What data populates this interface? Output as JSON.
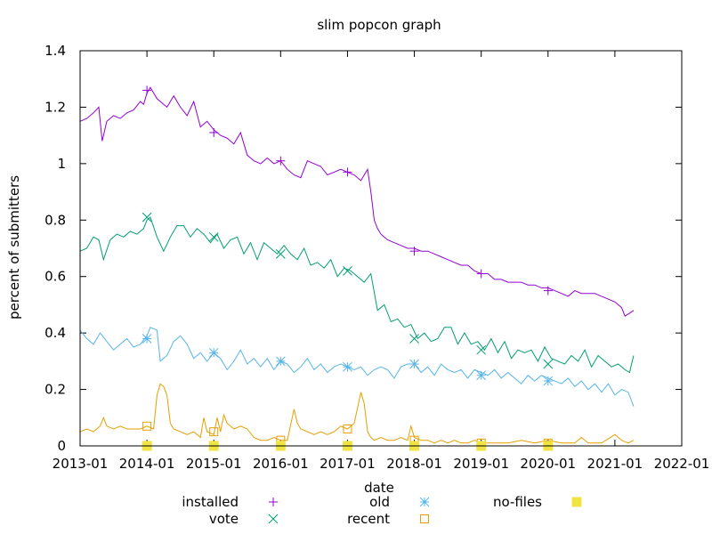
{
  "chart_data": {
    "type": "line",
    "title": "slim popcon graph",
    "xlabel": "date",
    "ylabel": "percent of submitters",
    "ylim": [
      0,
      1.4
    ],
    "xlim": [
      2013.0,
      2022.0
    ],
    "x_ticks": [
      "2013-01",
      "2014-01",
      "2015-01",
      "2016-01",
      "2017-01",
      "2018-01",
      "2019-01",
      "2020-01",
      "2021-01",
      "2022-01"
    ],
    "y_ticks": [
      "0",
      "0.2",
      "0.4",
      "0.6",
      "0.8",
      "1",
      "1.2",
      "1.4"
    ],
    "grid": false,
    "legend_position": "bottom",
    "series": [
      {
        "name": "installed",
        "color": "#9400d3",
        "marker": "plus",
        "x": [
          2013.0,
          2013.1,
          2013.2,
          2013.28,
          2013.33,
          2013.4,
          2013.5,
          2013.6,
          2013.7,
          2013.8,
          2013.9,
          2013.95,
          2014.0,
          2014.05,
          2014.15,
          2014.3,
          2014.4,
          2014.5,
          2014.6,
          2014.7,
          2014.8,
          2014.9,
          2015.0,
          2015.1,
          2015.2,
          2015.3,
          2015.4,
          2015.5,
          2015.6,
          2015.7,
          2015.8,
          2015.9,
          2016.0,
          2016.1,
          2016.2,
          2016.3,
          2016.4,
          2016.5,
          2016.6,
          2016.7,
          2016.8,
          2016.9,
          2017.0,
          2017.1,
          2017.2,
          2017.3,
          2017.35,
          2017.4,
          2017.45,
          2017.5,
          2017.6,
          2017.7,
          2017.8,
          2017.9,
          2018.0,
          2018.1,
          2018.2,
          2018.3,
          2018.4,
          2018.5,
          2018.6,
          2018.7,
          2018.8,
          2018.9,
          2019.0,
          2019.1,
          2019.2,
          2019.3,
          2019.4,
          2019.5,
          2019.6,
          2019.7,
          2019.8,
          2019.9,
          2020.0,
          2020.1,
          2020.2,
          2020.3,
          2020.4,
          2020.5,
          2020.6,
          2020.7,
          2020.8,
          2020.9,
          2021.0,
          2021.1,
          2021.15,
          2021.22,
          2021.28
        ],
        "values": [
          1.15,
          1.16,
          1.18,
          1.2,
          1.08,
          1.15,
          1.17,
          1.16,
          1.18,
          1.19,
          1.22,
          1.21,
          1.25,
          1.27,
          1.23,
          1.2,
          1.24,
          1.2,
          1.17,
          1.22,
          1.13,
          1.15,
          1.12,
          1.1,
          1.09,
          1.07,
          1.11,
          1.03,
          1.01,
          1.0,
          1.02,
          1.0,
          1.01,
          0.98,
          0.96,
          0.95,
          1.01,
          1.0,
          0.99,
          0.96,
          0.97,
          0.98,
          0.97,
          0.96,
          0.94,
          0.98,
          0.9,
          0.8,
          0.77,
          0.75,
          0.73,
          0.72,
          0.71,
          0.7,
          0.7,
          0.69,
          0.69,
          0.68,
          0.67,
          0.66,
          0.65,
          0.64,
          0.64,
          0.62,
          0.61,
          0.61,
          0.59,
          0.59,
          0.58,
          0.58,
          0.58,
          0.57,
          0.57,
          0.56,
          0.56,
          0.55,
          0.54,
          0.53,
          0.55,
          0.54,
          0.54,
          0.54,
          0.53,
          0.52,
          0.51,
          0.49,
          0.46,
          0.47,
          0.48
        ],
        "marker_x": [
          2014.0,
          2015.0,
          2016.0,
          2017.0,
          2018.0,
          2019.0,
          2020.0
        ],
        "marker_y": [
          1.26,
          1.11,
          1.01,
          0.97,
          0.69,
          0.61,
          0.55
        ]
      },
      {
        "name": "vote",
        "color": "#009e73",
        "marker": "cross",
        "x": [
          2013.0,
          2013.1,
          2013.2,
          2013.28,
          2013.35,
          2013.45,
          2013.55,
          2013.65,
          2013.75,
          2013.85,
          2013.95,
          2014.0,
          2014.05,
          2014.15,
          2014.25,
          2014.35,
          2014.45,
          2014.55,
          2014.65,
          2014.75,
          2014.85,
          2014.95,
          2015.05,
          2015.15,
          2015.25,
          2015.35,
          2015.45,
          2015.55,
          2015.65,
          2015.75,
          2015.85,
          2015.95,
          2016.05,
          2016.15,
          2016.25,
          2016.35,
          2016.45,
          2016.55,
          2016.65,
          2016.75,
          2016.85,
          2016.95,
          2017.05,
          2017.15,
          2017.25,
          2017.35,
          2017.45,
          2017.55,
          2017.65,
          2017.75,
          2017.85,
          2017.95,
          2018.05,
          2018.15,
          2018.25,
          2018.35,
          2018.45,
          2018.55,
          2018.65,
          2018.75,
          2018.85,
          2018.95,
          2019.05,
          2019.15,
          2019.25,
          2019.35,
          2019.45,
          2019.55,
          2019.65,
          2019.75,
          2019.85,
          2019.95,
          2020.05,
          2020.15,
          2020.25,
          2020.35,
          2020.45,
          2020.55,
          2020.65,
          2020.75,
          2020.85,
          2020.95,
          2021.05,
          2021.15,
          2021.22,
          2021.28
        ],
        "values": [
          0.69,
          0.7,
          0.74,
          0.73,
          0.66,
          0.73,
          0.75,
          0.74,
          0.76,
          0.75,
          0.77,
          0.8,
          0.81,
          0.74,
          0.69,
          0.74,
          0.78,
          0.78,
          0.74,
          0.77,
          0.75,
          0.72,
          0.75,
          0.7,
          0.73,
          0.74,
          0.68,
          0.72,
          0.66,
          0.72,
          0.7,
          0.68,
          0.71,
          0.68,
          0.66,
          0.7,
          0.64,
          0.65,
          0.63,
          0.66,
          0.6,
          0.63,
          0.62,
          0.6,
          0.58,
          0.61,
          0.48,
          0.5,
          0.44,
          0.45,
          0.42,
          0.43,
          0.38,
          0.4,
          0.37,
          0.38,
          0.42,
          0.42,
          0.36,
          0.4,
          0.36,
          0.37,
          0.34,
          0.38,
          0.33,
          0.37,
          0.31,
          0.34,
          0.33,
          0.34,
          0.3,
          0.35,
          0.31,
          0.3,
          0.29,
          0.32,
          0.3,
          0.34,
          0.28,
          0.32,
          0.3,
          0.28,
          0.29,
          0.27,
          0.26,
          0.32
        ],
        "marker_x": [
          2014.0,
          2015.0,
          2016.0,
          2017.0,
          2018.0,
          2019.0,
          2020.0
        ],
        "marker_y": [
          0.81,
          0.74,
          0.68,
          0.62,
          0.38,
          0.34,
          0.29
        ]
      },
      {
        "name": "old",
        "color": "#56b4e9",
        "marker": "star",
        "x": [
          2013.0,
          2013.1,
          2013.2,
          2013.3,
          2013.4,
          2013.5,
          2013.6,
          2013.7,
          2013.8,
          2013.9,
          2014.0,
          2014.05,
          2014.15,
          2014.2,
          2014.3,
          2014.4,
          2014.5,
          2014.6,
          2014.7,
          2014.8,
          2014.9,
          2015.0,
          2015.1,
          2015.2,
          2015.3,
          2015.4,
          2015.5,
          2015.6,
          2015.7,
          2015.8,
          2015.9,
          2016.0,
          2016.1,
          2016.2,
          2016.3,
          2016.4,
          2016.5,
          2016.6,
          2016.7,
          2016.8,
          2016.9,
          2017.0,
          2017.1,
          2017.2,
          2017.3,
          2017.4,
          2017.5,
          2017.6,
          2017.7,
          2017.8,
          2017.9,
          2018.0,
          2018.1,
          2018.2,
          2018.3,
          2018.4,
          2018.5,
          2018.6,
          2018.7,
          2018.8,
          2018.9,
          2019.0,
          2019.1,
          2019.2,
          2019.3,
          2019.4,
          2019.5,
          2019.6,
          2019.7,
          2019.8,
          2019.9,
          2020.0,
          2020.1,
          2020.2,
          2020.3,
          2020.4,
          2020.5,
          2020.6,
          2020.7,
          2020.8,
          2020.9,
          2021.0,
          2021.1,
          2021.2,
          2021.28
        ],
        "values": [
          0.41,
          0.38,
          0.36,
          0.4,
          0.37,
          0.34,
          0.36,
          0.38,
          0.35,
          0.36,
          0.39,
          0.42,
          0.41,
          0.3,
          0.32,
          0.37,
          0.39,
          0.36,
          0.31,
          0.33,
          0.3,
          0.33,
          0.31,
          0.27,
          0.3,
          0.34,
          0.29,
          0.31,
          0.28,
          0.31,
          0.27,
          0.3,
          0.29,
          0.26,
          0.28,
          0.31,
          0.27,
          0.29,
          0.26,
          0.28,
          0.29,
          0.28,
          0.27,
          0.28,
          0.25,
          0.27,
          0.28,
          0.27,
          0.24,
          0.28,
          0.29,
          0.29,
          0.26,
          0.28,
          0.25,
          0.29,
          0.27,
          0.26,
          0.27,
          0.24,
          0.27,
          0.26,
          0.25,
          0.27,
          0.24,
          0.26,
          0.24,
          0.22,
          0.25,
          0.23,
          0.25,
          0.24,
          0.23,
          0.22,
          0.24,
          0.21,
          0.23,
          0.2,
          0.22,
          0.19,
          0.22,
          0.18,
          0.2,
          0.19,
          0.14
        ],
        "marker_x": [
          2014.0,
          2015.0,
          2016.0,
          2017.0,
          2018.0,
          2019.0,
          2020.0
        ],
        "marker_y": [
          0.38,
          0.33,
          0.3,
          0.28,
          0.29,
          0.25,
          0.23
        ]
      },
      {
        "name": "recent",
        "color": "#e69f00",
        "marker": "square-open",
        "x": [
          2013.0,
          2013.1,
          2013.2,
          2013.3,
          2013.35,
          2013.4,
          2013.5,
          2013.6,
          2013.7,
          2013.8,
          2013.9,
          2014.0,
          2014.1,
          2014.15,
          2014.2,
          2014.25,
          2014.3,
          2014.35,
          2014.4,
          2014.5,
          2014.6,
          2014.7,
          2014.8,
          2014.85,
          2014.9,
          2015.0,
          2015.05,
          2015.1,
          2015.15,
          2015.2,
          2015.3,
          2015.4,
          2015.5,
          2015.6,
          2015.7,
          2015.8,
          2015.9,
          2016.0,
          2016.1,
          2016.2,
          2016.25,
          2016.3,
          2016.4,
          2016.5,
          2016.6,
          2016.7,
          2016.8,
          2016.9,
          2017.0,
          2017.1,
          2017.2,
          2017.25,
          2017.3,
          2017.35,
          2017.4,
          2017.5,
          2017.6,
          2017.7,
          2017.8,
          2017.9,
          2017.95,
          2018.0,
          2018.1,
          2018.2,
          2018.3,
          2018.4,
          2018.5,
          2018.6,
          2018.7,
          2018.8,
          2018.9,
          2019.0,
          2019.2,
          2019.4,
          2019.6,
          2019.8,
          2020.0,
          2020.2,
          2020.4,
          2020.5,
          2020.6,
          2020.7,
          2020.8,
          2021.0,
          2021.1,
          2021.2,
          2021.28
        ],
        "values": [
          0.05,
          0.06,
          0.05,
          0.07,
          0.1,
          0.07,
          0.06,
          0.07,
          0.06,
          0.06,
          0.06,
          0.07,
          0.06,
          0.18,
          0.22,
          0.21,
          0.18,
          0.08,
          0.06,
          0.05,
          0.04,
          0.05,
          0.03,
          0.1,
          0.05,
          0.04,
          0.1,
          0.05,
          0.11,
          0.08,
          0.06,
          0.07,
          0.06,
          0.03,
          0.02,
          0.02,
          0.03,
          0.02,
          0.02,
          0.13,
          0.08,
          0.06,
          0.05,
          0.04,
          0.05,
          0.04,
          0.05,
          0.07,
          0.06,
          0.08,
          0.19,
          0.15,
          0.05,
          0.03,
          0.02,
          0.03,
          0.02,
          0.02,
          0.03,
          0.02,
          0.07,
          0.03,
          0.02,
          0.02,
          0.01,
          0.02,
          0.01,
          0.02,
          0.01,
          0.01,
          0.02,
          0.01,
          0.01,
          0.01,
          0.02,
          0.01,
          0.02,
          0.01,
          0.01,
          0.03,
          0.01,
          0.01,
          0.01,
          0.04,
          0.02,
          0.01,
          0.02
        ],
        "marker_x": [
          2014.0,
          2015.0,
          2016.0,
          2017.0,
          2018.0,
          2019.0,
          2020.0
        ],
        "marker_y": [
          0.07,
          0.05,
          0.02,
          0.06,
          0.02,
          0.01,
          0.01
        ]
      },
      {
        "name": "no-files",
        "color": "#f0e442",
        "marker": "square-filled",
        "x": [
          2013.0,
          2021.28
        ],
        "values": [
          0.0,
          0.0
        ],
        "marker_x": [
          2014.0,
          2015.0,
          2016.0,
          2017.0,
          2018.0,
          2019.0,
          2020.0
        ],
        "marker_y": [
          0,
          0,
          0,
          0,
          0,
          0,
          0
        ]
      }
    ]
  }
}
